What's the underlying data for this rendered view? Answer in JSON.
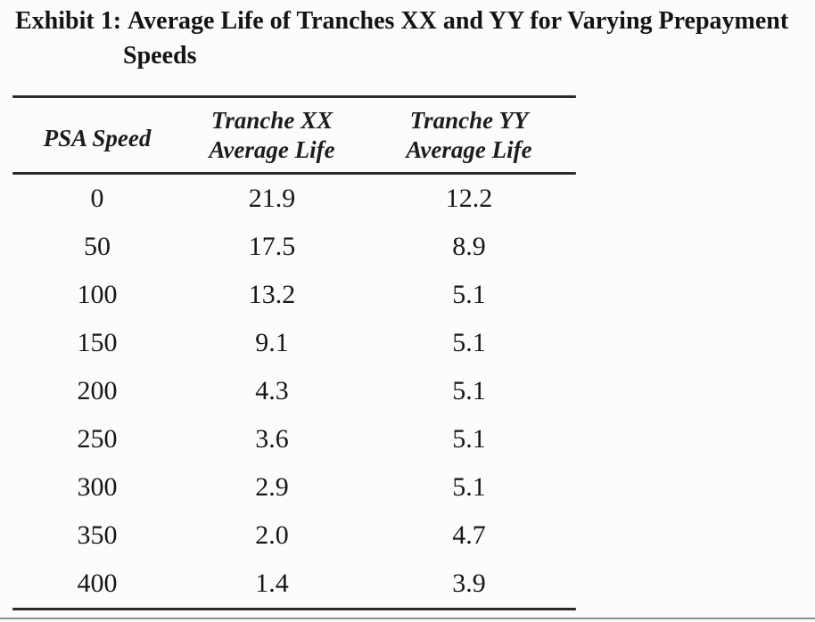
{
  "page": {
    "background_color": "#fcfcfc",
    "text_color": "#1a1a1a",
    "rule_color": "#2b2b2b",
    "page_edge_color": "#8d9294"
  },
  "exhibit": {
    "label": "Exhibit 1:",
    "title_line1": "Average Life of Tranches XX and YY for Varying Prepayment",
    "title_line2": "Speeds"
  },
  "table": {
    "col1_header": "PSA Speed",
    "col2_header_line1": "Tranche XX",
    "col2_header_line2": "Average Life",
    "col3_header_line1": "Tranche YY",
    "col3_header_line2": "Average Life",
    "rows": [
      {
        "psa": "0",
        "xx": "21.9",
        "yy": "12.2"
      },
      {
        "psa": "50",
        "xx": "17.5",
        "yy": "8.9"
      },
      {
        "psa": "100",
        "xx": "13.2",
        "yy": "5.1"
      },
      {
        "psa": "150",
        "xx": "9.1",
        "yy": "5.1"
      },
      {
        "psa": "200",
        "xx": "4.3",
        "yy": "5.1"
      },
      {
        "psa": "250",
        "xx": "3.6",
        "yy": "5.1"
      },
      {
        "psa": "300",
        "xx": "2.9",
        "yy": "5.1"
      },
      {
        "psa": "350",
        "xx": "2.0",
        "yy": "4.7"
      },
      {
        "psa": "400",
        "xx": "1.4",
        "yy": "3.9"
      }
    ]
  }
}
